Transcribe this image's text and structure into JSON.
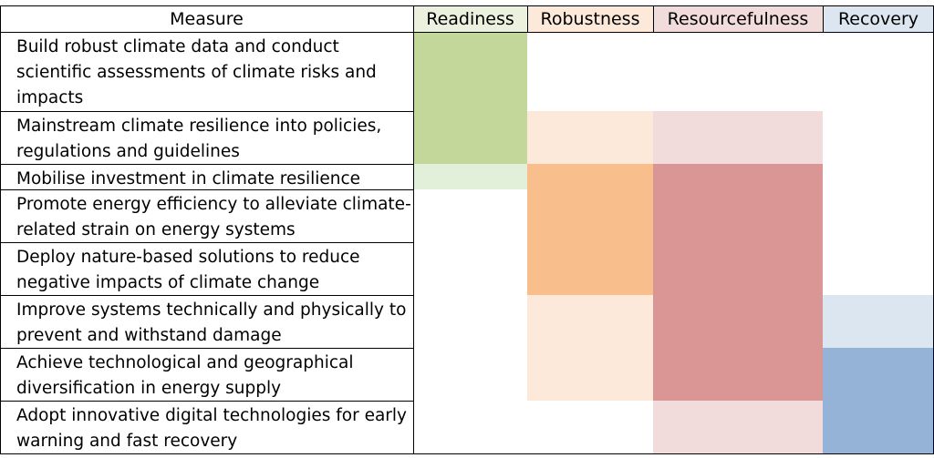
{
  "table": {
    "header": {
      "measure": "Measure",
      "columns": [
        {
          "label": "Readiness",
          "color": "#ebf1de"
        },
        {
          "label": "Robustness",
          "color": "#fde9d9"
        },
        {
          "label": "Resourcefulness",
          "color": "#f2dcdb"
        },
        {
          "label": "Recovery",
          "color": "#dce6f1"
        }
      ]
    },
    "levels": {
      "0": "#ffffff"
    },
    "palette": {
      "readiness": {
        "1": "#e2efd9",
        "2": "#c4d79b"
      },
      "robustness": {
        "1": "#fde9d9",
        "2": "#f8be8c"
      },
      "resourcefulness": {
        "1": "#f2dcdb",
        "2": "#da9694"
      },
      "recovery": {
        "1": "#dce6f1",
        "2": "#95b3d7"
      }
    },
    "rows": [
      {
        "measure": "Build robust climate data and conduct scientific assessments of climate risks and impacts",
        "levels": [
          2,
          0,
          0,
          0
        ]
      },
      {
        "measure": "Mainstream climate resilience into policies, regulations and guidelines",
        "levels": [
          2,
          1,
          1,
          0
        ]
      },
      {
        "measure": "Mobilise investment in climate resilience",
        "levels": [
          1,
          2,
          2,
          0
        ]
      },
      {
        "measure": "Promote energy efficiency to alleviate climate-related strain on energy systems",
        "levels": [
          0,
          2,
          2,
          0
        ]
      },
      {
        "measure": "Deploy nature-based solutions to reduce negative impacts of climate change",
        "levels": [
          0,
          2,
          2,
          0
        ]
      },
      {
        "measure": "Improve systems technically and physically to prevent and withstand damage",
        "levels": [
          0,
          1,
          2,
          1
        ]
      },
      {
        "measure": "Achieve technological and geographical diversification in energy supply",
        "levels": [
          0,
          1,
          2,
          2
        ]
      },
      {
        "measure": "Adopt innovative digital technologies for early warning and fast recovery",
        "levels": [
          0,
          0,
          1,
          2
        ]
      }
    ]
  }
}
